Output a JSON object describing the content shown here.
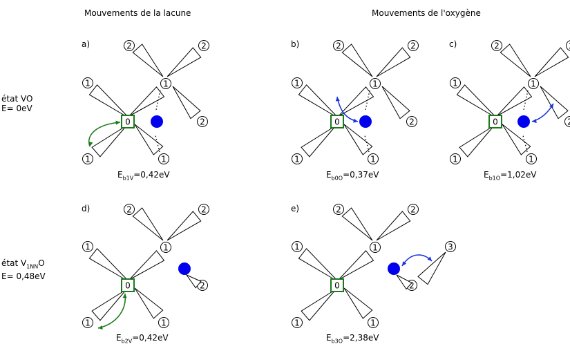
{
  "headers": {
    "vacancy_moves": "Mouvements de la lacune",
    "oxygen_moves": "Mouvements de l'oxygène"
  },
  "rows": [
    {
      "state_prefix": "état VO",
      "state_sub": "",
      "state_suffix": "",
      "energy": "E= 0eV"
    },
    {
      "state_prefix": "état V",
      "state_sub": "1NN",
      "state_suffix": "O",
      "energy": "E= 0,48eV"
    }
  ],
  "panels": [
    {
      "label": "a)",
      "energy_prefix": "E",
      "energy_sub": "b1V",
      "energy_value": "=0,42eV"
    },
    {
      "label": "b)",
      "energy_prefix": "E",
      "energy_sub": "b0O",
      "energy_value": "=0,37eV"
    },
    {
      "label": "c)",
      "energy_prefix": "E",
      "energy_sub": "b1O",
      "energy_value": "=1,02eV"
    },
    {
      "label": "d)",
      "energy_prefix": "E",
      "energy_sub": "b2V",
      "energy_value": "=0,42eV"
    },
    {
      "label": "e)",
      "energy_prefix": "E",
      "energy_sub": "b3O",
      "energy_value": "=2,38eV"
    }
  ],
  "site_labels": {
    "n0": "0",
    "n1": "1",
    "n2": "2",
    "n3": "3"
  },
  "colors": {
    "vacancy": "#1a7a1a",
    "oxygen": "#0000ee",
    "vacancy_arrow": "#1a7a1a",
    "oxygen_arrow": "#1a33dd"
  }
}
